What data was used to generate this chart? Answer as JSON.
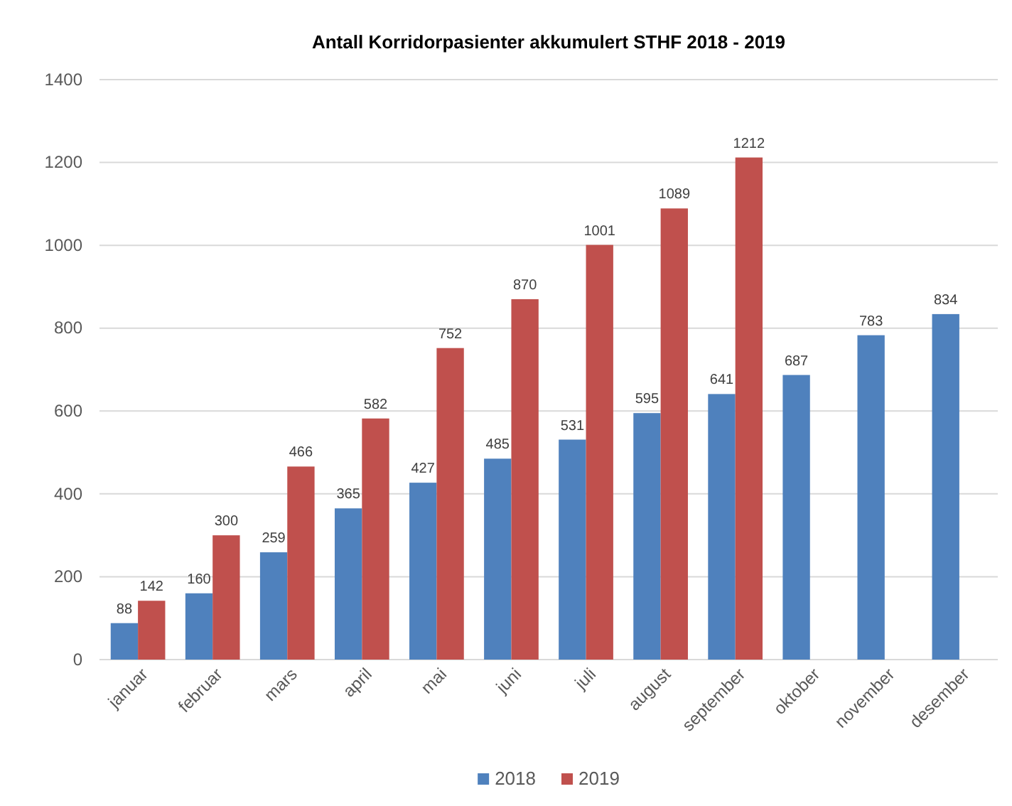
{
  "chart_data": {
    "type": "bar",
    "title": "Antall Korridorpasienter akkumulert STHF 2018 - 2019",
    "categories": [
      "januar",
      "februar",
      "mars",
      "april",
      "mai",
      "juni",
      "juli",
      "august",
      "september",
      "oktober",
      "november",
      "desember"
    ],
    "series": [
      {
        "name": "2018",
        "color": "#4f81bd",
        "values": [
          88,
          160,
          259,
          365,
          427,
          485,
          531,
          595,
          641,
          687,
          783,
          834
        ]
      },
      {
        "name": "2019",
        "color": "#c0504d",
        "values": [
          142,
          300,
          466,
          582,
          752,
          870,
          1001,
          1089,
          1212,
          null,
          null,
          null
        ]
      }
    ],
    "ylim": [
      0,
      1400
    ],
    "yticks": [
      0,
      200,
      400,
      600,
      800,
      1000,
      1200,
      1400
    ],
    "grid": "y",
    "legend": "bottom",
    "data_labels": true
  }
}
